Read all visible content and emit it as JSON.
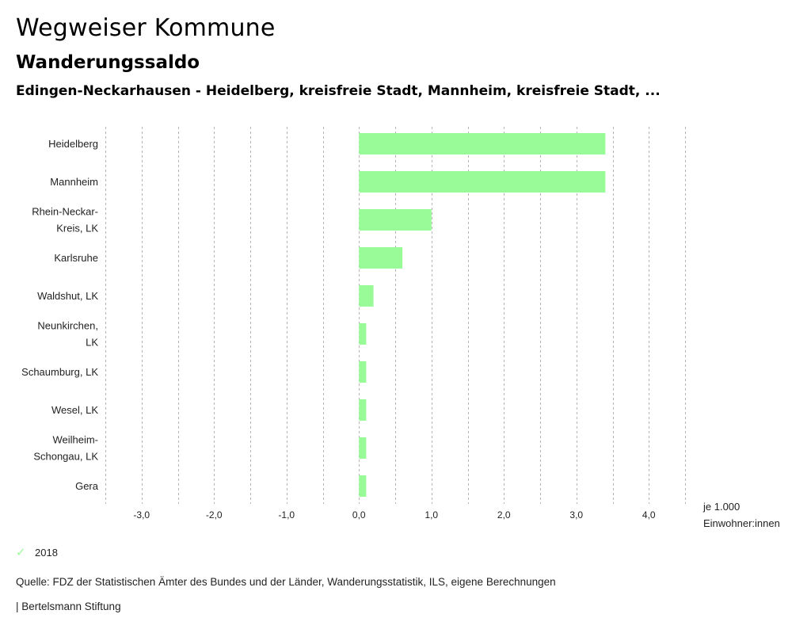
{
  "header": {
    "title": "Wegweiser Kommune",
    "subtitle": "Wanderungssaldo",
    "context": "Edingen-Neckarhausen - Heidelberg, kreisfreie Stadt, Mannheim, kreisfreie Stadt, ..."
  },
  "chart_data": {
    "type": "bar",
    "orientation": "horizontal",
    "title": "Wanderungssaldo",
    "categories": [
      [
        "Heidelberg"
      ],
      [
        "Mannheim"
      ],
      [
        "Rhein-Neckar-",
        "Kreis, LK"
      ],
      [
        "Karlsruhe"
      ],
      [
        "Waldshut, LK"
      ],
      [
        "Neunkirchen,",
        "LK"
      ],
      [
        "Schaumburg, LK"
      ],
      [
        "Wesel, LK"
      ],
      [
        "Weilheim-",
        "Schongau, LK"
      ],
      [
        "Gera"
      ]
    ],
    "series": [
      {
        "name": "2018",
        "color": "#98fb98",
        "values": [
          3.4,
          3.4,
          1.0,
          0.6,
          0.2,
          0.1,
          0.1,
          0.1,
          0.1,
          0.1
        ]
      }
    ],
    "xlim": [
      -3.5,
      4.5
    ],
    "grid_step": 0.5,
    "xticks": [
      -3,
      -2,
      -1,
      0,
      1,
      2,
      3,
      4
    ],
    "xtick_labels": [
      "-3,0",
      "-2,0",
      "-1,0",
      "0,0",
      "1,0",
      "2,0",
      "3,0",
      "4,0"
    ],
    "xlabel": [
      "je 1.000",
      "Einwohner:innen"
    ],
    "ylabel": "",
    "grid": true,
    "legend_position": "bottom-left"
  },
  "legend": {
    "items": [
      {
        "label": "2018",
        "color": "#98fb98",
        "icon": "check-icon"
      }
    ]
  },
  "footer": {
    "source": "Quelle: FDZ der Statistischen Ämter des Bundes und der Länder, Wanderungsstatistik, ILS, eigene Berechnungen",
    "brand": "| Bertelsmann Stiftung"
  }
}
